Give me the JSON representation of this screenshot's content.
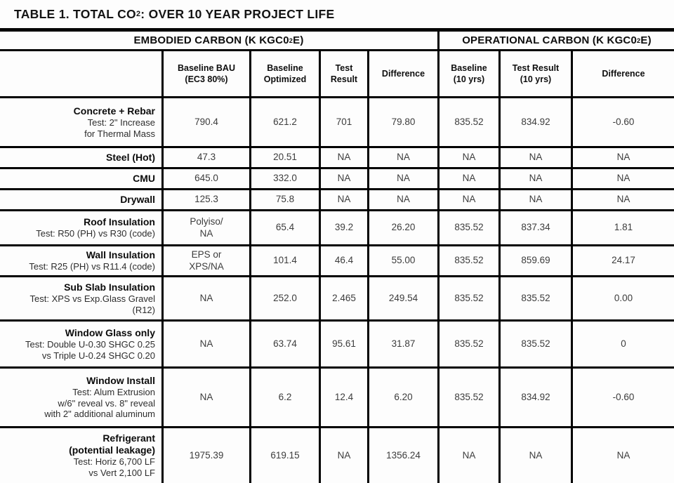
{
  "title": {
    "pre": "TABLE 1. TOTAL CO",
    "sub": "2",
    "post": ": OVER 10 YEAR PROJECT LIFE"
  },
  "sections": {
    "embodied": {
      "pre": "EMBODIED CARBON (K KGC0",
      "sub": "2",
      "post": "E)"
    },
    "operational": {
      "pre": "OPERATIONAL CARBON (K KGC0",
      "sub": "2",
      "post": "E)"
    }
  },
  "columns": [
    "Baseline BAU\n(EC3 80%)",
    "Baseline\nOptimized",
    "Test\nResult",
    "Difference",
    "Baseline\n(10 yrs)",
    "Test Result\n(10 yrs)",
    "Difference"
  ],
  "rows": [
    {
      "name": "Concrete + Rebar",
      "test": "Test: 2\" Increase\nfor Thermal Mass",
      "values": [
        "790.4",
        "621.2",
        "701",
        "79.80",
        "835.52",
        "834.92",
        "-0.60"
      ]
    },
    {
      "name": "Steel (Hot)",
      "test": "",
      "values": [
        "47.3",
        "20.51",
        "NA",
        "NA",
        "NA",
        "NA",
        "NA"
      ]
    },
    {
      "name": "CMU",
      "test": "",
      "values": [
        "645.0",
        "332.0",
        "NA",
        "NA",
        "NA",
        "NA",
        "NA"
      ]
    },
    {
      "name": "Drywall",
      "test": "",
      "values": [
        "125.3",
        "75.8",
        "NA",
        "NA",
        "NA",
        "NA",
        "NA"
      ]
    },
    {
      "name": "Roof Insulation",
      "test": "Test: R50 (PH) vs R30 (code)",
      "values": [
        "Polyiso/\nNA",
        "65.4",
        "39.2",
        "26.20",
        "835.52",
        "837.34",
        "1.81"
      ]
    },
    {
      "name": "Wall Insulation",
      "test": "Test: R25 (PH) vs R11.4 (code)",
      "values": [
        "EPS or\nXPS/NA",
        "101.4",
        "46.4",
        "55.00",
        "835.52",
        "859.69",
        "24.17"
      ]
    },
    {
      "name": "Sub Slab Insulation",
      "test": "Test: XPS vs Exp.Glass Gravel\n(R12)",
      "values": [
        "NA",
        "252.0",
        "2.465",
        "249.54",
        "835.52",
        "835.52",
        "0.00"
      ]
    },
    {
      "name": "Window Glass only",
      "test": "Test: Double U-0.30 SHGC 0.25\nvs Triple U-0.24 SHGC 0.20",
      "values": [
        "NA",
        "63.74",
        "95.61",
        "31.87",
        "835.52",
        "835.52",
        "0"
      ]
    },
    {
      "name": "Window Install",
      "test": "Test: Alum Extrusion\nw/6\" reveal vs. 8\" reveal\nwith 2\" additional aluminum",
      "values": [
        "NA",
        "6.2",
        "12.4",
        "6.20",
        "835.52",
        "834.92",
        "-0.60"
      ]
    },
    {
      "name": "Refrigerant\n(potential leakage)",
      "test": "Test: Horiz 6,700 LF\nvs Vert 2,100 LF",
      "values": [
        "1975.39",
        "619.15",
        "NA",
        "1356.24",
        "NA",
        "NA",
        "NA"
      ]
    }
  ]
}
